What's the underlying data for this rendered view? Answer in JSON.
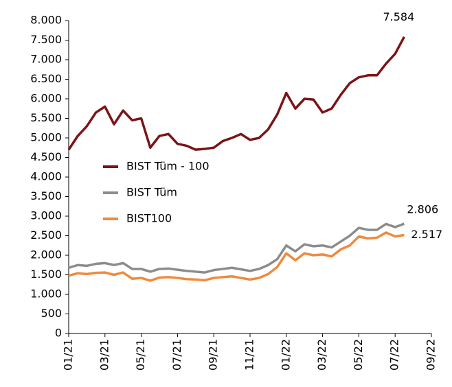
{
  "chart_data": {
    "type": "line",
    "x": [
      0,
      0.5,
      1,
      1.5,
      2,
      2.5,
      3,
      3.5,
      4,
      4.5,
      5,
      5.5,
      6,
      6.5,
      7,
      7.5,
      8,
      8.5,
      9,
      9.5,
      10,
      10.5,
      11,
      11.5,
      12,
      12.5,
      13,
      13.5,
      14,
      14.5,
      15,
      15.5,
      16,
      16.5,
      17,
      17.5,
      18,
      18.5
    ],
    "series": [
      {
        "name": "BIST Tüm - 100",
        "color": "#7b1416",
        "values": [
          4700,
          5050,
          5300,
          5650,
          5800,
          5350,
          5700,
          5450,
          5500,
          4750,
          5050,
          5100,
          4850,
          4800,
          4700,
          4720,
          4750,
          4920,
          5000,
          5100,
          4950,
          5000,
          5220,
          5600,
          6150,
          5750,
          6000,
          5980,
          5650,
          5750,
          6100,
          6400,
          6550,
          6600,
          6600,
          6900,
          7150,
          7584
        ],
        "value_labels": [
          null,
          null,
          null,
          null,
          null,
          null,
          null,
          null,
          null,
          null,
          null,
          null,
          null,
          null,
          null,
          null,
          null,
          null,
          null,
          null,
          null,
          null,
          null,
          null,
          null,
          null,
          null,
          null,
          null,
          null,
          null,
          null,
          null,
          null,
          null,
          null,
          null,
          "7.584"
        ]
      },
      {
        "name": "BIST Tüm",
        "color": "#8c8c8c",
        "values": [
          1680,
          1750,
          1730,
          1780,
          1800,
          1750,
          1800,
          1650,
          1650,
          1580,
          1650,
          1660,
          1630,
          1600,
          1580,
          1560,
          1620,
          1650,
          1680,
          1640,
          1600,
          1650,
          1750,
          1900,
          2250,
          2100,
          2280,
          2230,
          2250,
          2200,
          2350,
          2500,
          2700,
          2650,
          2650,
          2800,
          2720,
          2806
        ],
        "value_labels": [
          null,
          null,
          null,
          null,
          null,
          null,
          null,
          null,
          null,
          null,
          null,
          null,
          null,
          null,
          null,
          null,
          null,
          null,
          null,
          null,
          null,
          null,
          null,
          null,
          null,
          null,
          null,
          null,
          null,
          null,
          null,
          null,
          null,
          null,
          null,
          null,
          null,
          "2.806"
        ]
      },
      {
        "name": "BIST100",
        "color": "#f08a3c",
        "values": [
          1480,
          1540,
          1520,
          1550,
          1560,
          1500,
          1560,
          1400,
          1420,
          1350,
          1430,
          1440,
          1420,
          1390,
          1380,
          1360,
          1420,
          1440,
          1460,
          1420,
          1380,
          1420,
          1520,
          1700,
          2050,
          1870,
          2050,
          2000,
          2020,
          1970,
          2150,
          2250,
          2480,
          2430,
          2450,
          2580,
          2480,
          2517
        ],
        "value_labels": [
          null,
          null,
          null,
          null,
          null,
          null,
          null,
          null,
          null,
          null,
          null,
          null,
          null,
          null,
          null,
          null,
          null,
          null,
          null,
          null,
          null,
          null,
          null,
          null,
          null,
          null,
          null,
          null,
          null,
          null,
          null,
          null,
          null,
          null,
          null,
          null,
          null,
          "2.517"
        ]
      }
    ],
    "xlim": [
      0,
      20
    ],
    "xticks": [
      {
        "value": 0,
        "label": "01/21"
      },
      {
        "value": 2,
        "label": "03/21"
      },
      {
        "value": 4,
        "label": "05/21"
      },
      {
        "value": 6,
        "label": "07/21"
      },
      {
        "value": 8,
        "label": "09/21"
      },
      {
        "value": 10,
        "label": "11/21"
      },
      {
        "value": 12,
        "label": "01/22"
      },
      {
        "value": 14,
        "label": "03/22"
      },
      {
        "value": 16,
        "label": "05/22"
      },
      {
        "value": 18,
        "label": "07/22"
      },
      {
        "value": 20,
        "label": "09/22"
      }
    ],
    "ylim": [
      0,
      8000
    ],
    "yticks": [
      0,
      500,
      {
        "value": 1000,
        "label": "1.000"
      },
      {
        "value": 1500,
        "label": "1.500"
      },
      {
        "value": 2000,
        "label": "2.000"
      },
      {
        "value": 2500,
        "label": "2.500"
      },
      {
        "value": 3000,
        "label": "3.000"
      },
      {
        "value": 3500,
        "label": "3.500"
      },
      {
        "value": 4000,
        "label": "4.000"
      },
      {
        "value": 4500,
        "label": "4.500"
      },
      {
        "value": 5000,
        "label": "5.000"
      },
      {
        "value": 5500,
        "label": "5.500"
      },
      {
        "value": 6000,
        "label": "6.000"
      },
      {
        "value": 6500,
        "label": "6.500"
      },
      {
        "value": 7000,
        "label": "7.000"
      },
      {
        "value": 7500,
        "label": "7.500"
      },
      {
        "value": 8000,
        "label": "8.000"
      }
    ],
    "grid": false,
    "legend": "center left"
  }
}
